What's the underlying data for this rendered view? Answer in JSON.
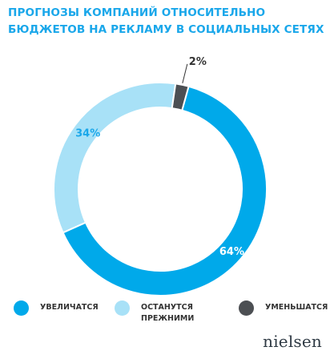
{
  "title": "ПРОГНОЗЫ КОМПАНИЙ ОТНОСИТЕЛЬНО БЮДЖЕТОВ НА РЕКЛАМУ В СОЦИАЛЬНЫХ СЕТЯХ",
  "chart_data": {
    "type": "pie",
    "title": "ПРОГНОЗЫ КОМПАНИЙ ОТНОСИТЕЛЬНО БЮДЖЕТОВ НА РЕКЛАМУ В СОЦИАЛЬНЫХ СЕТЯХ",
    "slices": [
      {
        "label": "УВЕЛИЧАТСЯ",
        "value": 64,
        "value_label": "64%",
        "color": "#00a9ea"
      },
      {
        "label": "ОСТАНУТСЯ ПРЕЖНИМИ",
        "value": 34,
        "value_label": "34%",
        "color": "#a8e1f7"
      },
      {
        "label": "УМЕНЬШАТСЯ",
        "value": 2,
        "value_label": "2%",
        "color": "#4c4f53"
      }
    ],
    "legend_position": "bottom"
  },
  "logo": "nielsen"
}
